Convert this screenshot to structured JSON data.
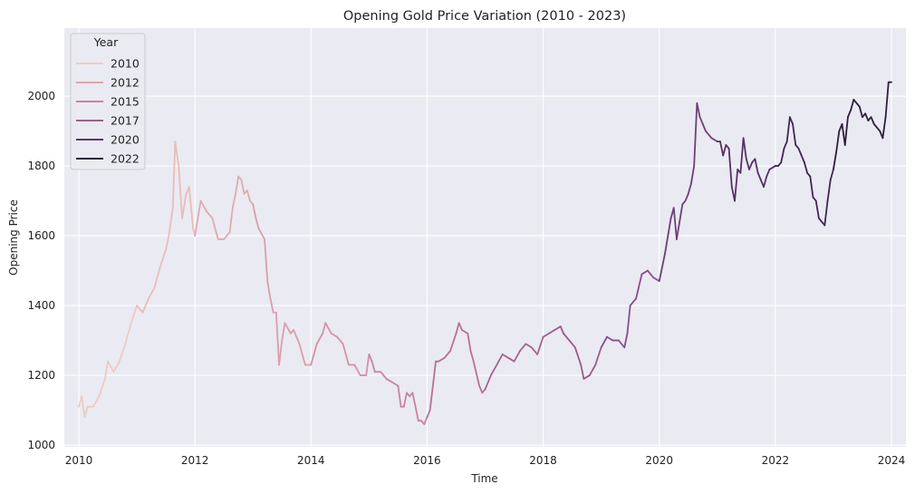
{
  "chart_data": {
    "type": "line",
    "title": "Opening Gold Price Variation (2010 - 2023)",
    "xlabel": "Time",
    "ylabel": "Opening Price",
    "xlim": [
      2009.75,
      2024.25
    ],
    "ylim": [
      995,
      2195
    ],
    "x_ticks": [
      "2010",
      "2012",
      "2014",
      "2016",
      "2018",
      "2020",
      "2022",
      "2024"
    ],
    "y_ticks": [
      "1000",
      "1200",
      "1400",
      "1600",
      "1800",
      "2000"
    ],
    "grid": true,
    "background_color": "#eaeaf2",
    "legend": {
      "title": "Year",
      "placement": "top-left",
      "entries": [
        {
          "label": "2010",
          "color": "#edcbc2"
        },
        {
          "label": "2012",
          "color": "#dea7ac"
        },
        {
          "label": "2015",
          "color": "#c7859e"
        },
        {
          "label": "2017",
          "color": "#9e5f8a"
        },
        {
          "label": "2020",
          "color": "#5e3768"
        },
        {
          "label": "2022",
          "color": "#2e1e3d"
        }
      ]
    },
    "color_scale": {
      "year": [
        2010,
        2011,
        2012,
        2013,
        2014,
        2015,
        2016,
        2017,
        2018,
        2019,
        2020,
        2021,
        2022,
        2023
      ],
      "color": [
        "#edcbc2",
        "#e8bdb8",
        "#deabaf",
        "#d89fa9",
        "#d393a4",
        "#c7859e",
        "#b87096",
        "#a86390",
        "#9c5a8a",
        "#86508a",
        "#6c4176",
        "#563065",
        "#412750",
        "#2e1e3d"
      ]
    },
    "series": [
      {
        "x": [
          2010.0,
          2010.05,
          2010.1,
          2010.15,
          2010.25,
          2010.35,
          2010.45,
          2010.5,
          2010.6,
          2010.7,
          2010.8,
          2010.9,
          2011.0,
          2011.1,
          2011.2,
          2011.3,
          2011.4,
          2011.5,
          2011.55,
          2011.62,
          2011.66,
          2011.72,
          2011.78,
          2011.85,
          2011.9,
          2011.97,
          2012.0,
          2012.1,
          2012.2,
          2012.3,
          2012.4,
          2012.5,
          2012.6,
          2012.65,
          2012.7,
          2012.75,
          2012.8,
          2012.85,
          2012.9,
          2012.95,
          2013.0,
          2013.05,
          2013.1,
          2013.2,
          2013.25,
          2013.3,
          2013.35,
          2013.4,
          2013.45,
          2013.5,
          2013.55,
          2013.65,
          2013.7,
          2013.8,
          2013.9,
          2014.0,
          2014.1,
          2014.2,
          2014.25,
          2014.35,
          2014.45,
          2014.55,
          2014.65,
          2014.75,
          2014.85,
          2014.95,
          2015.0,
          2015.05,
          2015.1,
          2015.2,
          2015.3,
          2015.4,
          2015.5,
          2015.55,
          2015.6,
          2015.65,
          2015.7,
          2015.75,
          2015.8,
          2015.85,
          2015.9,
          2015.95,
          2016.0,
          2016.05,
          2016.1,
          2016.15,
          2016.2,
          2016.3,
          2016.4,
          2016.5,
          2016.55,
          2016.6,
          2016.7,
          2016.75,
          2016.8,
          2016.9,
          2016.95,
          2017.0,
          2017.1,
          2017.2,
          2017.3,
          2017.4,
          2017.5,
          2017.6,
          2017.7,
          2017.8,
          2017.9,
          2018.0,
          2018.1,
          2018.2,
          2018.3,
          2018.35,
          2018.45,
          2018.55,
          2018.65,
          2018.7,
          2018.8,
          2018.9,
          2019.0,
          2019.1,
          2019.2,
          2019.3,
          2019.4,
          2019.45,
          2019.5,
          2019.6,
          2019.7,
          2019.8,
          2019.9,
          2020.0,
          2020.1,
          2020.15,
          2020.2,
          2020.25,
          2020.3,
          2020.35,
          2020.4,
          2020.45,
          2020.5,
          2020.55,
          2020.6,
          2020.65,
          2020.7,
          2020.75,
          2020.8,
          2020.9,
          2021.0,
          2021.05,
          2021.1,
          2021.15,
          2021.2,
          2021.25,
          2021.3,
          2021.35,
          2021.4,
          2021.45,
          2021.5,
          2021.55,
          2021.6,
          2021.65,
          2021.7,
          2021.75,
          2021.8,
          2021.85,
          2021.9,
          2022.0,
          2022.05,
          2022.1,
          2022.15,
          2022.2,
          2022.25,
          2022.3,
          2022.35,
          2022.4,
          2022.45,
          2022.5,
          2022.55,
          2022.6,
          2022.65,
          2022.7,
          2022.75,
          2022.8,
          2022.85,
          2022.9,
          2022.95,
          2023.0,
          2023.05,
          2023.1,
          2023.15,
          2023.2,
          2023.25,
          2023.3,
          2023.35,
          2023.4,
          2023.45,
          2023.5,
          2023.55,
          2023.6,
          2023.65,
          2023.7,
          2023.75,
          2023.8,
          2023.85,
          2023.9,
          2023.95,
          2024.0
        ],
        "y": [
          1110,
          1140,
          1080,
          1110,
          1110,
          1140,
          1190,
          1240,
          1210,
          1240,
          1290,
          1350,
          1400,
          1380,
          1420,
          1450,
          1510,
          1560,
          1600,
          1680,
          1870,
          1800,
          1650,
          1720,
          1740,
          1620,
          1600,
          1700,
          1670,
          1650,
          1590,
          1590,
          1610,
          1680,
          1720,
          1770,
          1760,
          1720,
          1730,
          1700,
          1690,
          1650,
          1620,
          1590,
          1470,
          1420,
          1380,
          1380,
          1230,
          1300,
          1350,
          1320,
          1330,
          1290,
          1230,
          1230,
          1290,
          1320,
          1350,
          1320,
          1310,
          1290,
          1230,
          1230,
          1200,
          1200,
          1260,
          1240,
          1210,
          1210,
          1190,
          1180,
          1170,
          1110,
          1110,
          1150,
          1140,
          1150,
          1110,
          1070,
          1070,
          1060,
          1080,
          1100,
          1170,
          1240,
          1240,
          1250,
          1270,
          1320,
          1350,
          1330,
          1320,
          1270,
          1240,
          1170,
          1150,
          1160,
          1200,
          1230,
          1260,
          1250,
          1240,
          1270,
          1290,
          1280,
          1260,
          1310,
          1320,
          1330,
          1340,
          1320,
          1300,
          1280,
          1230,
          1190,
          1200,
          1230,
          1280,
          1310,
          1300,
          1300,
          1280,
          1320,
          1400,
          1420,
          1490,
          1500,
          1480,
          1470,
          1550,
          1600,
          1650,
          1680,
          1590,
          1640,
          1690,
          1700,
          1720,
          1750,
          1800,
          1980,
          1940,
          1920,
          1900,
          1880,
          1870,
          1870,
          1830,
          1860,
          1850,
          1740,
          1700,
          1790,
          1780,
          1880,
          1820,
          1790,
          1810,
          1820,
          1780,
          1760,
          1740,
          1770,
          1790,
          1800,
          1800,
          1810,
          1850,
          1870,
          1940,
          1920,
          1860,
          1850,
          1830,
          1810,
          1780,
          1770,
          1710,
          1700,
          1650,
          1640,
          1630,
          1700,
          1760,
          1790,
          1840,
          1900,
          1920,
          1860,
          1940,
          1960,
          1990,
          1980,
          1970,
          1940,
          1950,
          1930,
          1940,
          1920,
          1910,
          1900,
          1880,
          1940,
          2040,
          2040
        ]
      }
    ]
  }
}
